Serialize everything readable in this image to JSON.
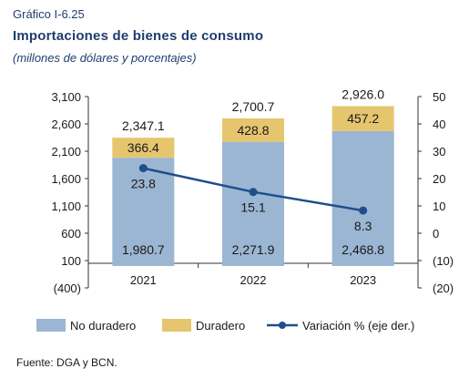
{
  "header": {
    "label": "Gráfico I-6.25",
    "title": "Importaciones de bienes de consumo",
    "subtitle": "(millones de dólares y porcentajes)"
  },
  "source": "Fuente: DGA y BCN.",
  "colors": {
    "no_duradero": "#9bb6d2",
    "duradero": "#e6c56f",
    "variacion": "#1f4e8c",
    "axis": "#333333"
  },
  "chart_data": {
    "type": "bar",
    "stacked": true,
    "categories": [
      "2021",
      "2022",
      "2023"
    ],
    "series": [
      {
        "name": "No duradero",
        "values": [
          1980.7,
          2271.9,
          2468.8
        ],
        "labels": [
          "1,980.7",
          "2,271.9",
          "2,468.8"
        ],
        "axis": "left"
      },
      {
        "name": "Duradero",
        "values": [
          366.4,
          428.8,
          457.2
        ],
        "labels": [
          "366.4",
          "428.8",
          "457.2"
        ],
        "axis": "left"
      },
      {
        "name": "Variación  % (eje der.)",
        "type": "line",
        "values": [
          23.8,
          15.1,
          8.3
        ],
        "labels": [
          "23.8",
          "15.1",
          "8.3"
        ],
        "axis": "right"
      }
    ],
    "totals": {
      "values": [
        2347.1,
        2700.7,
        2926.0
      ],
      "labels": [
        "2,347.1",
        "2,700.7",
        "2,926.0"
      ]
    },
    "y_left": {
      "ylim": [
        -400,
        3100
      ],
      "ticks": [
        "3,100",
        "2,600",
        "2,100",
        "1,600",
        "1,100",
        "600",
        "100",
        "(400)"
      ],
      "tick_values": [
        3100,
        2600,
        2100,
        1600,
        1100,
        600,
        100,
        -400
      ]
    },
    "y_right": {
      "ylim": [
        -20,
        50
      ],
      "ticks": [
        "50",
        "40",
        "30",
        "20",
        "10",
        "0",
        "(10)",
        "(20)"
      ],
      "tick_values": [
        50,
        40,
        30,
        20,
        10,
        0,
        -10,
        -20
      ]
    },
    "legend_position": "bottom",
    "grid": false
  }
}
